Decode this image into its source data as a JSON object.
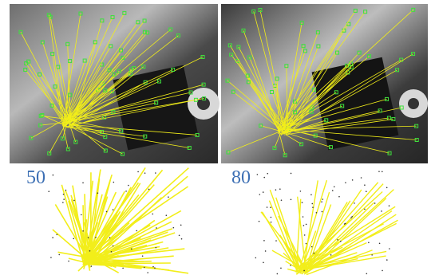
{
  "panels": [
    {
      "label": "50"
    },
    {
      "label": "80"
    }
  ]
}
